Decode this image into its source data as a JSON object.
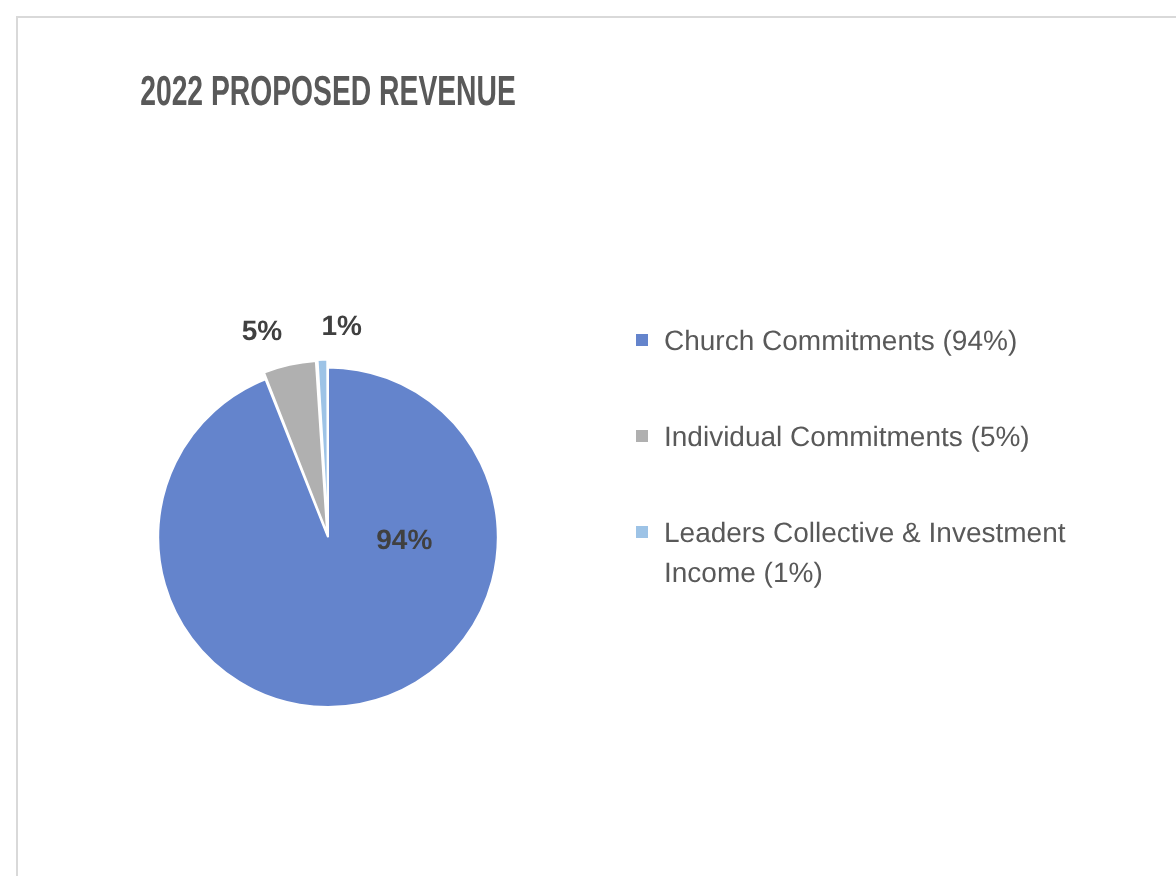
{
  "chart_data": {
    "type": "pie",
    "title": "2022 PROPOSED REVENUE",
    "categories": [
      "Church Commitments (94%)",
      "Individual Commitments (5%)",
      "Leaders Collective & Investment Income (1%)"
    ],
    "values": [
      94,
      5,
      1
    ],
    "colors": [
      "#6484cc",
      "#b0b0b0",
      "#9dc3e6"
    ],
    "value_labels": [
      "94%",
      "5%",
      "1%"
    ],
    "legend": "right"
  }
}
